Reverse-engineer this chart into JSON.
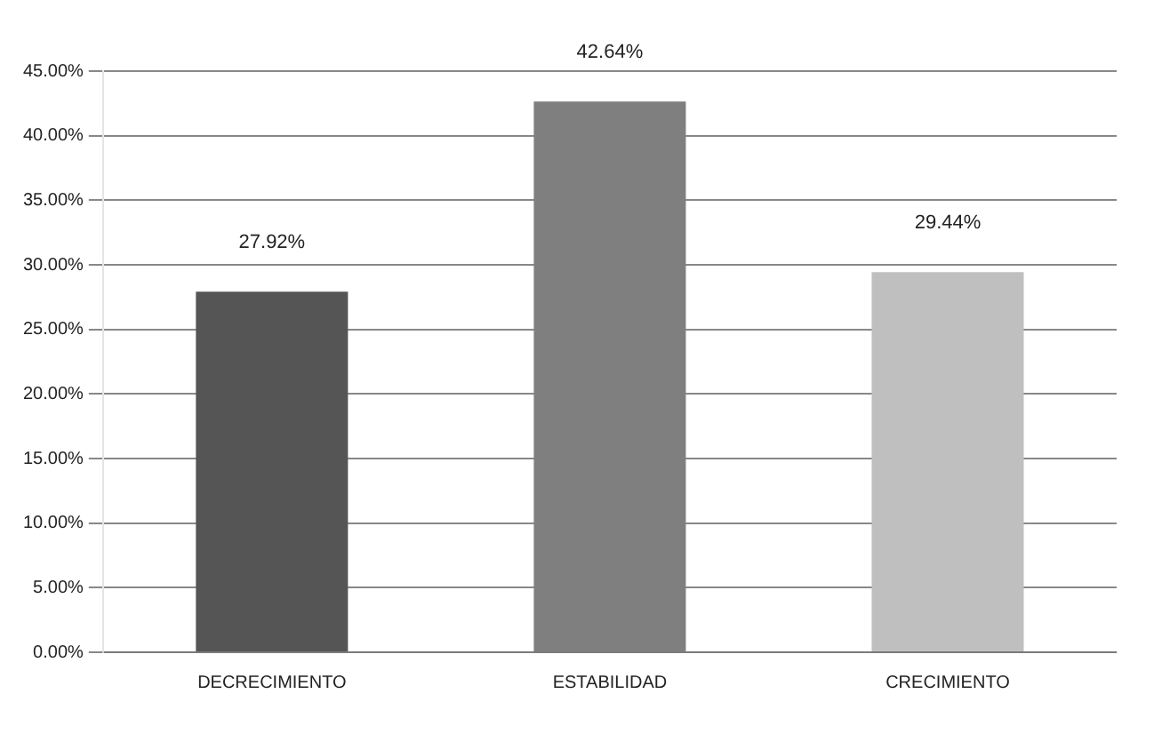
{
  "chart_data": {
    "type": "bar",
    "categories": [
      "DECRECIMIENTO",
      "ESTABILIDAD",
      "CRECIMIENTO"
    ],
    "values": [
      27.92,
      42.64,
      29.44
    ],
    "colors": [
      "#555555",
      "#7f7f7f",
      "#bfbfbf"
    ],
    "value_labels": [
      "27.92%",
      "42.64%",
      "29.44%"
    ],
    "ylim": [
      0,
      45
    ],
    "yticks": [
      {
        "value": 0,
        "label": "0.00%"
      },
      {
        "value": 5,
        "label": "5.00%"
      },
      {
        "value": 10,
        "label": "10.00%"
      },
      {
        "value": 15,
        "label": "15.00%"
      },
      {
        "value": 20,
        "label": "20.00%"
      },
      {
        "value": 25,
        "label": "25.00%"
      },
      {
        "value": 30,
        "label": "30.00%"
      },
      {
        "value": 35,
        "label": "35.00%"
      },
      {
        "value": 40,
        "label": "40.00%"
      },
      {
        "value": 45,
        "label": "45.00%"
      }
    ],
    "grid": "y",
    "legend": false
  }
}
